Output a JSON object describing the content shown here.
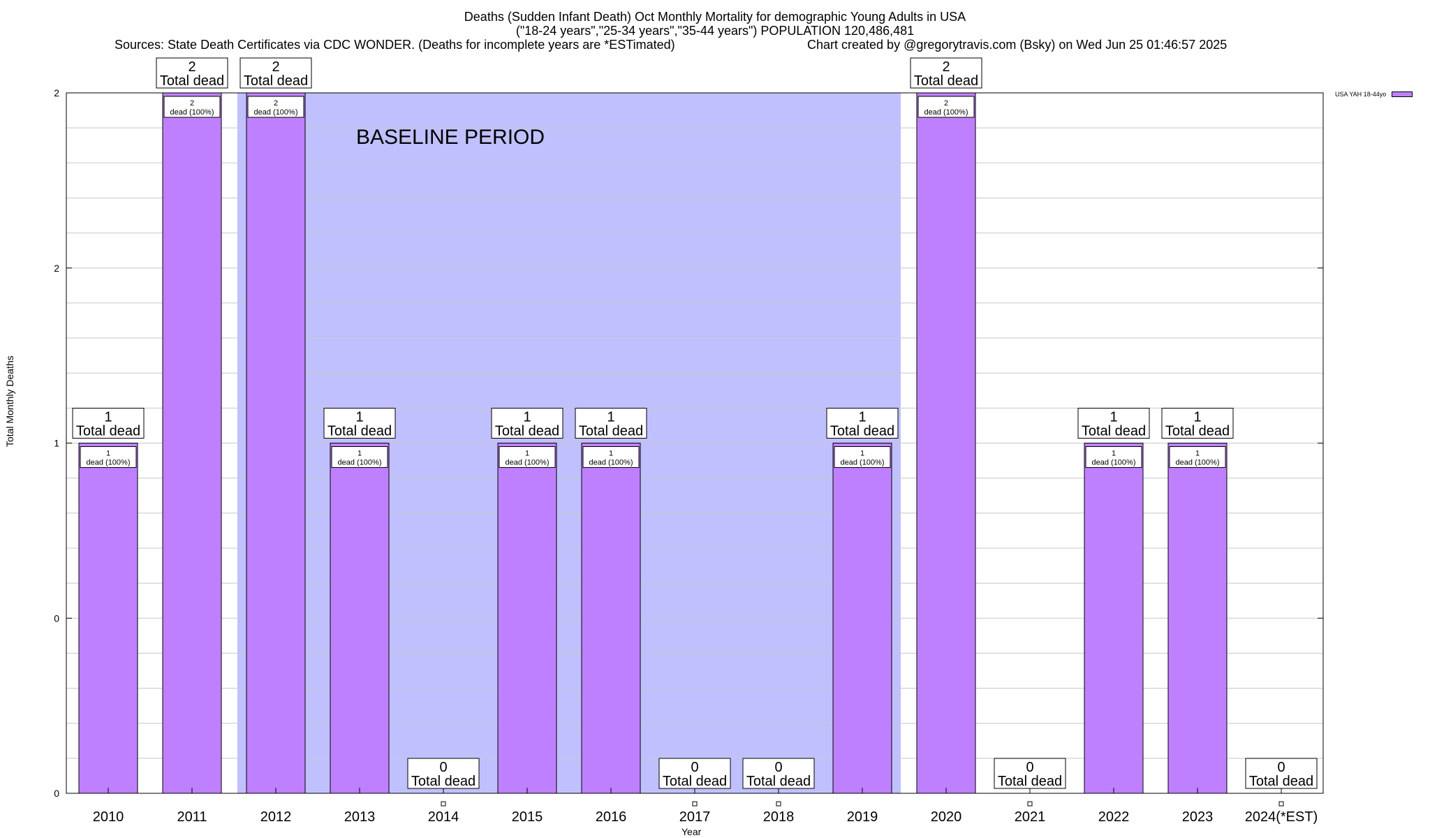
{
  "header": {
    "title_line1": "Deaths (Sudden Infant Death) Oct Monthly Mortality for demographic Young Adults in USA",
    "title_line2": "(\"18-24 years\",\"25-34 years\",\"35-44 years\") POPULATION 120,486,481",
    "sources": "Sources: State Death Certificates via CDC WONDER. (Deaths for incomplete years are *ESTimated)",
    "credit": "Chart created by @gregorytravis.com (Bsky) on Wed Jun 25 01:46:57 2025"
  },
  "chart_data": {
    "type": "bar",
    "xlabel": "Year",
    "ylabel": "Total Monthly Deaths",
    "categories": [
      "2010",
      "2011",
      "2012",
      "2013",
      "2014",
      "2015",
      "2016",
      "2017",
      "2018",
      "2019",
      "2020",
      "2021",
      "2022",
      "2023",
      "2024(*EST)"
    ],
    "series": [
      {
        "name": "USA YAH 18-44yo",
        "values": [
          1,
          2,
          2,
          1,
          0,
          1,
          1,
          0,
          0,
          1,
          2,
          0,
          1,
          1,
          0
        ]
      }
    ],
    "y_tick_labels": [
      "0",
      "0",
      "1",
      "2",
      "2"
    ],
    "y_tick_values": [
      0,
      0.5,
      1,
      1.5,
      2
    ],
    "ylim": [
      0,
      2
    ],
    "grid": true,
    "legend_position": "top-right",
    "baseline_period": {
      "label": "BASELINE PERIOD",
      "from": "2012",
      "to": "2019"
    },
    "top_label_suffix": "Total dead",
    "inner_label_suffix": "dead (100%)",
    "colors": {
      "bar": "#bf80ff",
      "baseline": "#c0c0ff",
      "grid": "#c8c8c8"
    }
  }
}
